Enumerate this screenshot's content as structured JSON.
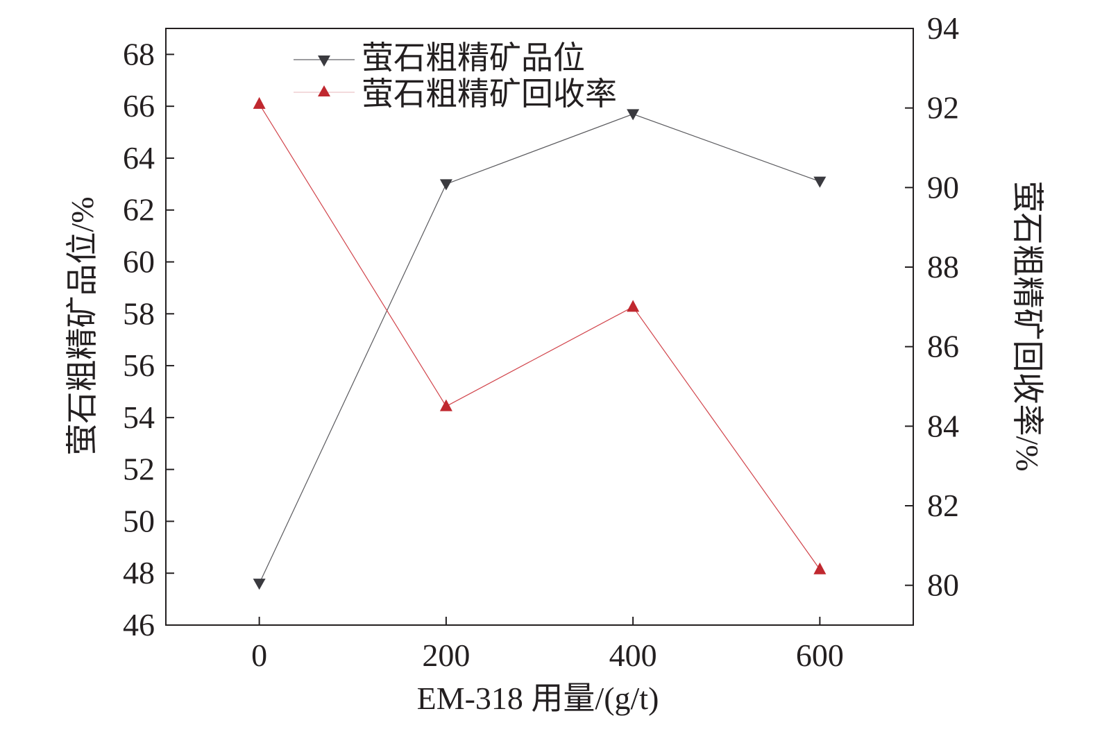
{
  "chart_data": {
    "type": "line",
    "xlabel": "EM-318 用量/(g/t)",
    "ylabel_left": "萤石粗精矿品位/%",
    "ylabel_right": "萤石粗精矿回收率/%",
    "x": [
      0,
      200,
      400,
      600
    ],
    "x_ticks": [
      "0",
      "200",
      "400",
      "600"
    ],
    "xlim": [
      -100,
      700
    ],
    "ylim_left": [
      46,
      69
    ],
    "yticks_left": [
      "46",
      "48",
      "50",
      "52",
      "54",
      "56",
      "58",
      "60",
      "62",
      "64",
      "66",
      "68"
    ],
    "ylim_right": [
      79,
      94
    ],
    "yticks_right": [
      "80",
      "82",
      "84",
      "86",
      "88",
      "90",
      "92",
      "94"
    ],
    "legend_position": "top-center",
    "series": [
      {
        "name": "萤石粗精矿品位",
        "axis": "left",
        "marker": "triangle-down",
        "color": "#3a3a3f",
        "values": [
          47.6,
          63.0,
          65.7,
          63.1
        ]
      },
      {
        "name": "萤石粗精矿回收率",
        "axis": "right",
        "marker": "triangle-up",
        "color": "#c0282f",
        "values": [
          92.1,
          84.5,
          87.0,
          80.4
        ]
      }
    ]
  }
}
